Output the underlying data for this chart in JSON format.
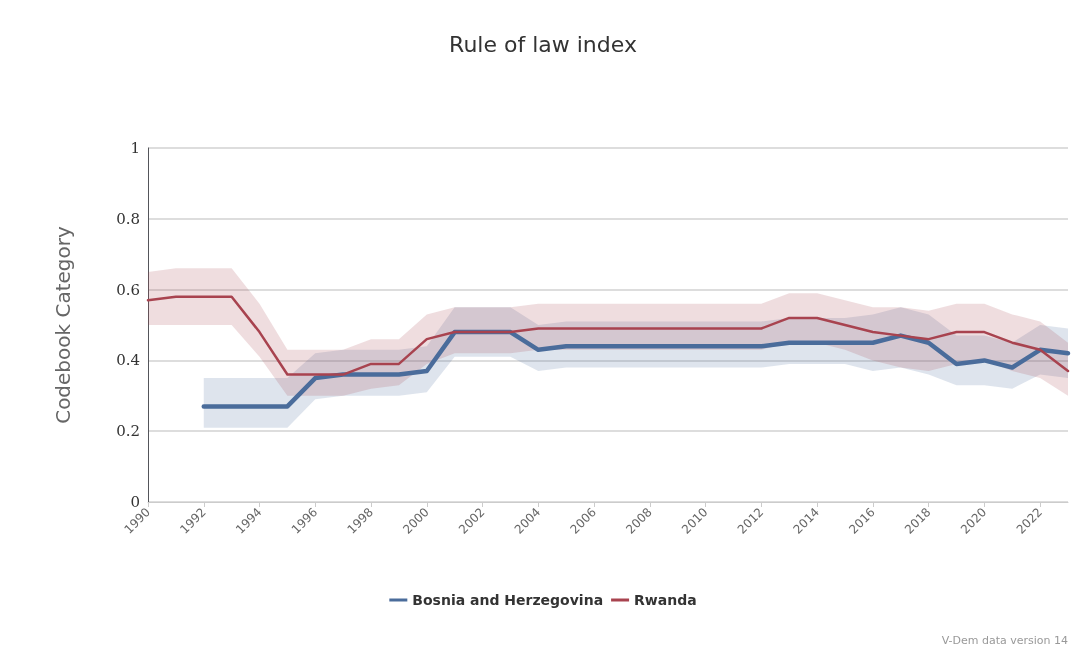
{
  "chart_data": {
    "type": "line",
    "title": "Rule of law index",
    "ylabel": "Codebook Category",
    "x": [
      1990,
      1991,
      1992,
      1993,
      1994,
      1995,
      1996,
      1997,
      1998,
      1999,
      2000,
      2001,
      2002,
      2003,
      2004,
      2005,
      2006,
      2007,
      2008,
      2009,
      2010,
      2011,
      2012,
      2013,
      2014,
      2015,
      2016,
      2017,
      2018,
      2019,
      2020,
      2021,
      2022,
      2023
    ],
    "xlim": [
      1990,
      2023
    ],
    "xticks": [
      1990,
      1992,
      1994,
      1996,
      1998,
      2000,
      2002,
      2004,
      2006,
      2008,
      2010,
      2012,
      2014,
      2016,
      2018,
      2020,
      2022
    ],
    "ylim": [
      0,
      1
    ],
    "yticks": [
      0,
      0.2,
      0.4,
      0.6,
      0.8,
      1
    ],
    "grid": "y",
    "legend": "bottom",
    "marker": "none",
    "line_style": "solid",
    "series": [
      {
        "name": "Bosnia and Herzegovina",
        "color": "#4a6c9b",
        "values": [
          null,
          null,
          0.27,
          0.27,
          0.27,
          0.27,
          0.35,
          0.36,
          0.36,
          0.36,
          0.37,
          0.48,
          0.48,
          0.48,
          0.43,
          0.44,
          0.44,
          0.44,
          0.44,
          0.44,
          0.44,
          0.44,
          0.44,
          0.45,
          0.45,
          0.45,
          0.45,
          0.47,
          0.45,
          0.39,
          0.4,
          0.38,
          0.43,
          0.42
        ],
        "lower": [
          null,
          null,
          0.21,
          0.21,
          0.21,
          0.21,
          0.29,
          0.3,
          0.3,
          0.3,
          0.31,
          0.41,
          0.41,
          0.41,
          0.37,
          0.38,
          0.38,
          0.38,
          0.38,
          0.38,
          0.38,
          0.38,
          0.38,
          0.39,
          0.39,
          0.39,
          0.37,
          0.38,
          0.36,
          0.33,
          0.33,
          0.32,
          0.36,
          0.35
        ],
        "upper": [
          null,
          null,
          0.35,
          0.35,
          0.35,
          0.35,
          0.42,
          0.43,
          0.43,
          0.43,
          0.44,
          0.55,
          0.55,
          0.55,
          0.5,
          0.51,
          0.51,
          0.51,
          0.51,
          0.51,
          0.51,
          0.51,
          0.51,
          0.52,
          0.52,
          0.52,
          0.53,
          0.55,
          0.53,
          0.47,
          0.47,
          0.45,
          0.5,
          0.49
        ]
      },
      {
        "name": "Rwanda",
        "color": "#a8434f",
        "values": [
          0.57,
          0.58,
          0.58,
          0.58,
          0.48,
          0.36,
          0.36,
          0.36,
          0.39,
          0.39,
          0.46,
          0.48,
          0.48,
          0.48,
          0.49,
          0.49,
          0.49,
          0.49,
          0.49,
          0.49,
          0.49,
          0.49,
          0.49,
          0.52,
          0.52,
          0.5,
          0.48,
          0.47,
          0.46,
          0.48,
          0.48,
          0.45,
          0.43,
          0.37
        ],
        "lower": [
          0.5,
          0.5,
          0.5,
          0.5,
          0.41,
          0.3,
          0.3,
          0.3,
          0.32,
          0.33,
          0.39,
          0.42,
          0.42,
          0.42,
          0.43,
          0.43,
          0.43,
          0.43,
          0.43,
          0.43,
          0.43,
          0.43,
          0.43,
          0.45,
          0.45,
          0.43,
          0.4,
          0.38,
          0.37,
          0.39,
          0.4,
          0.37,
          0.35,
          0.3
        ],
        "upper": [
          0.65,
          0.66,
          0.66,
          0.66,
          0.56,
          0.43,
          0.43,
          0.43,
          0.46,
          0.46,
          0.53,
          0.55,
          0.55,
          0.55,
          0.56,
          0.56,
          0.56,
          0.56,
          0.56,
          0.56,
          0.56,
          0.56,
          0.56,
          0.59,
          0.59,
          0.57,
          0.55,
          0.55,
          0.54,
          0.56,
          0.56,
          0.53,
          0.51,
          0.45
        ]
      }
    ],
    "annotations": [
      "V-Dem data version 14"
    ]
  }
}
